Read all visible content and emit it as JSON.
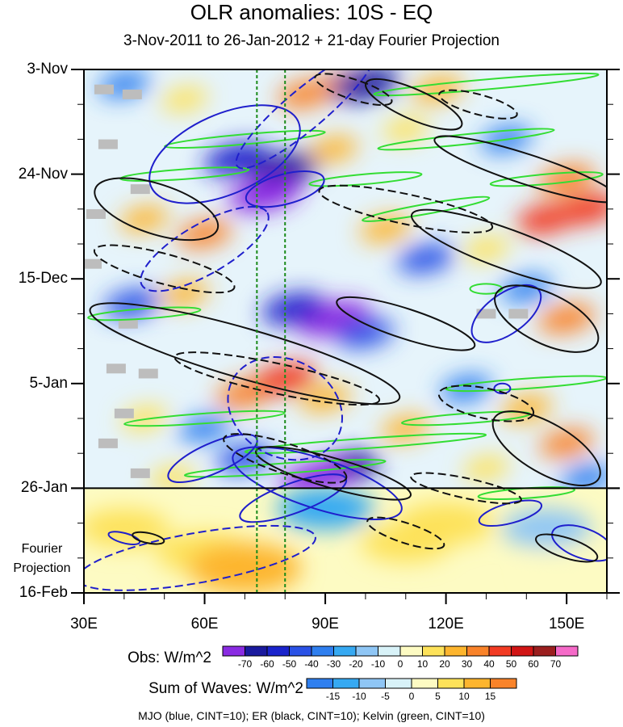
{
  "chart_data": {
    "type": "heatmap",
    "title": "OLR anomalies: 10S - EQ",
    "subtitle": "3-Nov-2011 to 26-Jan-2012 + 21-day Fourier Projection",
    "x_axis": {
      "units": "longitude (deg E)",
      "range": [
        30,
        160
      ],
      "ticks": [
        30,
        60,
        90,
        120,
        150
      ],
      "tick_labels": [
        "30E",
        "60E",
        "90E",
        "120E",
        "150E"
      ]
    },
    "y_axis": {
      "units": "days since 3-Nov-2011",
      "range": [
        0,
        105
      ],
      "ticks": [
        0,
        21,
        42,
        63,
        84,
        105
      ],
      "tick_labels": [
        "3-Nov",
        "24-Nov",
        "15-Dec",
        "5-Jan",
        "26-Jan",
        "16-Feb"
      ]
    },
    "forecast_start_day": 84,
    "projection_label": "Fourier Projection",
    "vertical_reference_lines_lon": [
      73,
      80
    ],
    "obs_colorbar": {
      "title": "Obs: W/m^2",
      "levels": [
        -70,
        -60,
        -50,
        -40,
        -30,
        -20,
        -10,
        0,
        10,
        20,
        30,
        40,
        50,
        60,
        70
      ],
      "colors": [
        "#8a2be2",
        "#1a1a9e",
        "#1a24cc",
        "#2a52e6",
        "#2f7fef",
        "#36a9f2",
        "#8fc6f5",
        "#d8f2f8",
        "#fdfbc3",
        "#fde25a",
        "#fdb52e",
        "#f9832a",
        "#f23b23",
        "#d11515",
        "#9b1f1f",
        "#f56ac8"
      ]
    },
    "waves_colorbar": {
      "title": "Sum of Waves: W/m^2",
      "levels": [
        -15,
        -10,
        -5,
        0,
        5,
        10,
        15
      ],
      "colors": [
        "#2f7fef",
        "#36a9f2",
        "#8fc6f5",
        "#d8f2f8",
        "#fdfbc3",
        "#fde25a",
        "#fdb52e",
        "#f9832a"
      ]
    },
    "obs_anomaly_blobs": [
      {
        "lon": 95,
        "day": 3,
        "value": 40
      },
      {
        "lon": 85,
        "day": 5,
        "value": 35
      },
      {
        "lon": 118,
        "day": 4,
        "value": 30
      },
      {
        "lon": 100,
        "day": 3,
        "value": -60
      },
      {
        "lon": 55,
        "day": 6,
        "value": 20
      },
      {
        "lon": 40,
        "day": 3,
        "value": -30
      },
      {
        "lon": 68,
        "day": 18,
        "value": -55
      },
      {
        "lon": 80,
        "day": 20,
        "value": -60
      },
      {
        "lon": 75,
        "day": 25,
        "value": -70
      },
      {
        "lon": 92,
        "day": 16,
        "value": 25
      },
      {
        "lon": 110,
        "day": 12,
        "value": 20
      },
      {
        "lon": 135,
        "day": 14,
        "value": -30
      },
      {
        "lon": 150,
        "day": 22,
        "value": 40
      },
      {
        "lon": 155,
        "day": 28,
        "value": 50
      },
      {
        "lon": 145,
        "day": 30,
        "value": 45
      },
      {
        "lon": 60,
        "day": 33,
        "value": 35
      },
      {
        "lon": 45,
        "day": 30,
        "value": 25
      },
      {
        "lon": 105,
        "day": 32,
        "value": 30
      },
      {
        "lon": 115,
        "day": 38,
        "value": -40
      },
      {
        "lon": 130,
        "day": 36,
        "value": 20
      },
      {
        "lon": 140,
        "day": 44,
        "value": -30
      },
      {
        "lon": 92,
        "day": 50,
        "value": -70
      },
      {
        "lon": 82,
        "day": 48,
        "value": -50
      },
      {
        "lon": 100,
        "day": 53,
        "value": -40
      },
      {
        "lon": 42,
        "day": 47,
        "value": -40
      },
      {
        "lon": 55,
        "day": 45,
        "value": 25
      },
      {
        "lon": 150,
        "day": 50,
        "value": 40
      },
      {
        "lon": 70,
        "day": 65,
        "value": 40
      },
      {
        "lon": 80,
        "day": 62,
        "value": 50
      },
      {
        "lon": 90,
        "day": 66,
        "value": 30
      },
      {
        "lon": 125,
        "day": 64,
        "value": -30
      },
      {
        "lon": 140,
        "day": 68,
        "value": 30
      },
      {
        "lon": 60,
        "day": 72,
        "value": -30
      },
      {
        "lon": 45,
        "day": 70,
        "value": 20
      },
      {
        "lon": 110,
        "day": 72,
        "value": 25
      },
      {
        "lon": 150,
        "day": 75,
        "value": 35
      },
      {
        "lon": 95,
        "day": 80,
        "value": -60
      },
      {
        "lon": 88,
        "day": 82,
        "value": -70
      },
      {
        "lon": 70,
        "day": 78,
        "value": -40
      },
      {
        "lon": 130,
        "day": 80,
        "value": 20
      },
      {
        "lon": 52,
        "day": 82,
        "value": 20
      },
      {
        "lon": 155,
        "day": 82,
        "value": -30
      }
    ],
    "projection_anomaly_blobs": [
      {
        "lon": 60,
        "day": 97,
        "value": 10
      },
      {
        "lon": 70,
        "day": 100,
        "value": 15
      },
      {
        "lon": 40,
        "day": 92,
        "value": 8
      },
      {
        "lon": 90,
        "day": 88,
        "value": -10
      },
      {
        "lon": 110,
        "day": 95,
        "value": 8
      },
      {
        "lon": 120,
        "day": 91,
        "value": 10
      },
      {
        "lon": 145,
        "day": 92,
        "value": -8
      },
      {
        "lon": 150,
        "day": 100,
        "value": 5
      }
    ],
    "missing_data_cells": [
      {
        "lon": 35,
        "day": 4
      },
      {
        "lon": 42,
        "day": 5
      },
      {
        "lon": 36,
        "day": 15
      },
      {
        "lon": 44,
        "day": 24
      },
      {
        "lon": 33,
        "day": 29
      },
      {
        "lon": 32,
        "day": 39
      },
      {
        "lon": 41,
        "day": 51
      },
      {
        "lon": 38,
        "day": 60
      },
      {
        "lon": 46,
        "day": 61
      },
      {
        "lon": 40,
        "day": 69
      },
      {
        "lon": 36,
        "day": 75
      },
      {
        "lon": 44,
        "day": 81
      },
      {
        "lon": 130,
        "day": 49
      },
      {
        "lon": 138,
        "day": 49
      }
    ],
    "mjo_contours": [
      {
        "lon": 65,
        "day": 17,
        "rx_deg": 20,
        "ry_days": 8,
        "angle": 24,
        "sign": "positive"
      },
      {
        "lon": 80,
        "day": 24,
        "rx_deg": 10,
        "ry_days": 3,
        "angle": 15,
        "sign": "positive"
      },
      {
        "lon": 85,
        "day": 8,
        "rx_deg": 22,
        "ry_days": 4,
        "angle": 40,
        "sign": "negative"
      },
      {
        "lon": 60,
        "day": 36,
        "rx_deg": 18,
        "ry_days": 5,
        "angle": 30,
        "sign": "negative"
      },
      {
        "lon": 62,
        "day": 78,
        "rx_deg": 12,
        "ry_days": 3,
        "angle": 24,
        "sign": "positive"
      },
      {
        "lon": 88,
        "day": 83,
        "rx_deg": 22,
        "ry_days": 5,
        "angle": -18,
        "sign": "positive"
      },
      {
        "lon": 82,
        "day": 86,
        "rx_deg": 14,
        "ry_days": 3,
        "angle": 20,
        "sign": "positive"
      },
      {
        "lon": 80,
        "day": 68,
        "rx_deg": 12,
        "ry_days": 12,
        "angle": 60,
        "sign": "negative"
      },
      {
        "lon": 135,
        "day": 49,
        "rx_deg": 10,
        "ry_days": 4,
        "angle": 36,
        "sign": "positive"
      },
      {
        "lon": 134,
        "day": 64,
        "rx_deg": 2,
        "ry_days": 1,
        "angle": 0,
        "sign": "positive"
      },
      {
        "lon": 136,
        "day": 89,
        "rx_deg": 8,
        "ry_days": 2,
        "angle": 15,
        "sign": "positive"
      },
      {
        "lon": 154,
        "day": 95,
        "rx_deg": 8,
        "ry_days": 3,
        "angle": -20,
        "sign": "positive"
      },
      {
        "lon": 40,
        "day": 94,
        "rx_deg": 4,
        "ry_days": 1,
        "angle": -15,
        "sign": "positive"
      },
      {
        "lon": 58,
        "day": 98,
        "rx_deg": 30,
        "ry_days": 5,
        "angle": 10,
        "sign": "negative"
      }
    ],
    "er_contours": [
      {
        "lon": 112,
        "day": 7,
        "rx_deg": 13,
        "ry_days": 3,
        "angle": -24,
        "sign": "positive"
      },
      {
        "lon": 97,
        "day": 4,
        "rx_deg": 10,
        "ry_days": 2,
        "angle": -18,
        "sign": "negative"
      },
      {
        "lon": 128,
        "day": 7,
        "rx_deg": 10,
        "ry_days": 2,
        "angle": -15,
        "sign": "negative"
      },
      {
        "lon": 48,
        "day": 28,
        "rx_deg": 16,
        "ry_days": 5,
        "angle": -18,
        "sign": "positive"
      },
      {
        "lon": 140,
        "day": 20,
        "rx_deg": 24,
        "ry_days": 3,
        "angle": -18,
        "sign": "positive"
      },
      {
        "lon": 135,
        "day": 36,
        "rx_deg": 25,
        "ry_days": 4,
        "angle": -20,
        "sign": "positive"
      },
      {
        "lon": 110,
        "day": 28,
        "rx_deg": 22,
        "ry_days": 3,
        "angle": -12,
        "sign": "negative"
      },
      {
        "lon": 50,
        "day": 40,
        "rx_deg": 18,
        "ry_days": 3,
        "angle": -15,
        "sign": "negative"
      },
      {
        "lon": 70,
        "day": 57,
        "rx_deg": 40,
        "ry_days": 5,
        "angle": -16,
        "sign": "positive"
      },
      {
        "lon": 110,
        "day": 51,
        "rx_deg": 18,
        "ry_days": 3,
        "angle": -18,
        "sign": "positive"
      },
      {
        "lon": 145,
        "day": 50,
        "rx_deg": 14,
        "ry_days": 5,
        "angle": -26,
        "sign": "positive"
      },
      {
        "lon": 78,
        "day": 62,
        "rx_deg": 26,
        "ry_days": 3,
        "angle": -12,
        "sign": "negative"
      },
      {
        "lon": 130,
        "day": 67,
        "rx_deg": 12,
        "ry_days": 3,
        "angle": -12,
        "sign": "negative"
      },
      {
        "lon": 145,
        "day": 76,
        "rx_deg": 15,
        "ry_days": 5,
        "angle": -30,
        "sign": "positive"
      },
      {
        "lon": 80,
        "day": 78,
        "rx_deg": 16,
        "ry_days": 3,
        "angle": -18,
        "sign": "negative"
      },
      {
        "lon": 92,
        "day": 81,
        "rx_deg": 20,
        "ry_days": 3,
        "angle": -16,
        "sign": "positive"
      },
      {
        "lon": 125,
        "day": 84,
        "rx_deg": 14,
        "ry_days": 2,
        "angle": -12,
        "sign": "negative"
      },
      {
        "lon": 110,
        "day": 93,
        "rx_deg": 10,
        "ry_days": 2,
        "angle": -18,
        "sign": "negative"
      },
      {
        "lon": 46,
        "day": 94,
        "rx_deg": 4,
        "ry_days": 1,
        "angle": -12,
        "sign": "positive"
      },
      {
        "lon": 150,
        "day": 96,
        "rx_deg": 8,
        "ry_days": 2,
        "angle": -18,
        "sign": "positive"
      }
    ],
    "kelvin_contours": [
      {
        "lon": 130,
        "day": 3,
        "rx_deg": 28,
        "ry_days": 1,
        "angle": 5,
        "sign": "positive"
      },
      {
        "lon": 70,
        "day": 14,
        "rx_deg": 20,
        "ry_days": 1,
        "angle": 5,
        "sign": "positive"
      },
      {
        "lon": 125,
        "day": 14,
        "rx_deg": 22,
        "ry_days": 1,
        "angle": 6,
        "sign": "positive"
      },
      {
        "lon": 55,
        "day": 21,
        "rx_deg": 16,
        "ry_days": 1,
        "angle": 4,
        "sign": "positive"
      },
      {
        "lon": 100,
        "day": 22,
        "rx_deg": 14,
        "ry_days": 1,
        "angle": 5,
        "sign": "positive"
      },
      {
        "lon": 145,
        "day": 22,
        "rx_deg": 14,
        "ry_days": 1,
        "angle": 5,
        "sign": "positive"
      },
      {
        "lon": 115,
        "day": 28,
        "rx_deg": 16,
        "ry_days": 1,
        "angle": 10,
        "sign": "positive"
      },
      {
        "lon": 130,
        "day": 44,
        "rx_deg": 4,
        "ry_days": 1,
        "angle": 0,
        "sign": "positive"
      },
      {
        "lon": 45,
        "day": 49,
        "rx_deg": 14,
        "ry_days": 1,
        "angle": 4,
        "sign": "positive"
      },
      {
        "lon": 140,
        "day": 63,
        "rx_deg": 20,
        "ry_days": 1,
        "angle": 4,
        "sign": "positive"
      },
      {
        "lon": 60,
        "day": 70,
        "rx_deg": 20,
        "ry_days": 1,
        "angle": 4,
        "sign": "positive"
      },
      {
        "lon": 125,
        "day": 70,
        "rx_deg": 16,
        "ry_days": 1,
        "angle": 4,
        "sign": "positive"
      },
      {
        "lon": 100,
        "day": 75,
        "rx_deg": 30,
        "ry_days": 1,
        "angle": 4,
        "sign": "positive"
      },
      {
        "lon": 80,
        "day": 80,
        "rx_deg": 25,
        "ry_days": 1,
        "angle": 4,
        "sign": "positive"
      },
      {
        "lon": 140,
        "day": 85,
        "rx_deg": 12,
        "ry_days": 1,
        "angle": 4,
        "sign": "positive"
      }
    ],
    "wave_legend": "MJO (blue, CINT=10); ER (black, CINT=10); Kelvin (green, CINT=10)"
  }
}
